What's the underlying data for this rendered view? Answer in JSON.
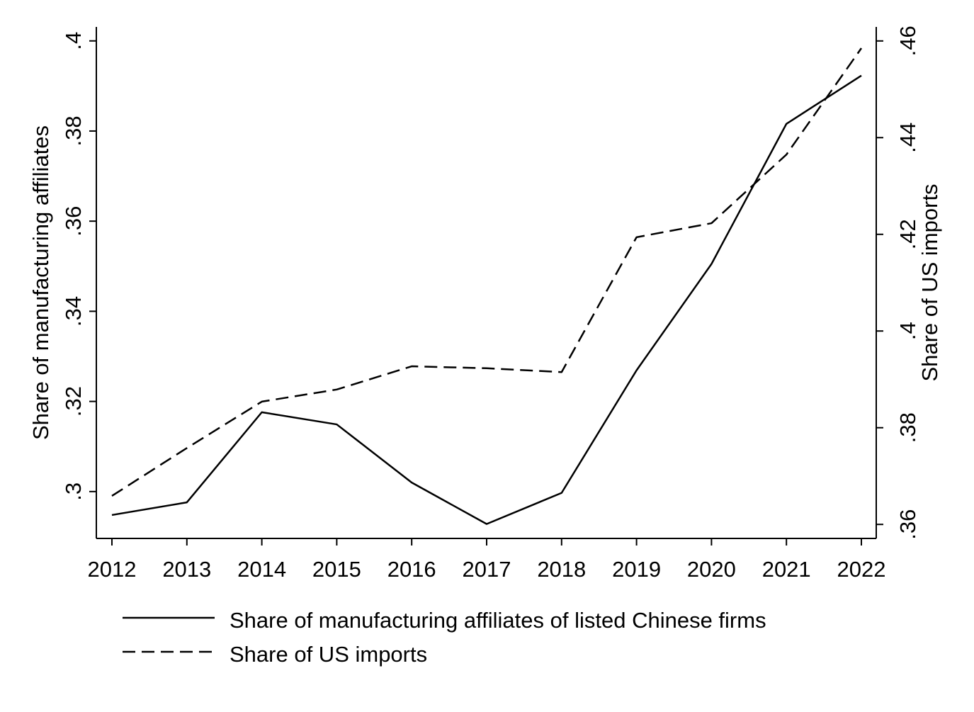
{
  "chart_data": {
    "type": "line",
    "title": "",
    "xlabel": "",
    "ylabel": "Share of manufacturing affiliates",
    "y2label": "Share of US imports",
    "x": [
      2012,
      2013,
      2014,
      2015,
      2016,
      2017,
      2018,
      2019,
      2020,
      2021,
      2022
    ],
    "x_tick_labels": [
      "2012",
      "2013",
      "2014",
      "2015",
      "2016",
      "2017",
      "2018",
      "2019",
      "2020",
      "2021",
      "2022"
    ],
    "ylim": [
      0.2896,
      0.4031
    ],
    "y_ticks": [
      0.3,
      0.32,
      0.34,
      0.36,
      0.38,
      0.4
    ],
    "y_tick_labels": [
      ".3",
      ".32",
      ".34",
      ".36",
      ".38",
      ".4"
    ],
    "y2lim": [
      0.3571,
      0.4629
    ],
    "y2_ticks": [
      0.36,
      0.38,
      0.4,
      0.42,
      0.44,
      0.46
    ],
    "y2_tick_labels": [
      ".36",
      ".38",
      ".4",
      ".42",
      ".44",
      ".46"
    ],
    "grid": false,
    "legend_placement": "bottom",
    "series": [
      {
        "name": "Share of manufacturing affiliates of listed Chinese firms",
        "axis": "left",
        "style": "solid",
        "color": "#000000",
        "values": [
          0.2948,
          0.2976,
          0.3176,
          0.3149,
          0.302,
          0.2928,
          0.2997,
          0.3269,
          0.3505,
          0.3816,
          0.3923
        ]
      },
      {
        "name": "Share of US imports",
        "axis": "right",
        "style": "dashed",
        "color": "#000000",
        "values": [
          0.3659,
          0.3758,
          0.3854,
          0.3879,
          0.3927,
          0.3923,
          0.3915,
          0.4194,
          0.4223,
          0.4365,
          0.4585
        ]
      }
    ]
  }
}
